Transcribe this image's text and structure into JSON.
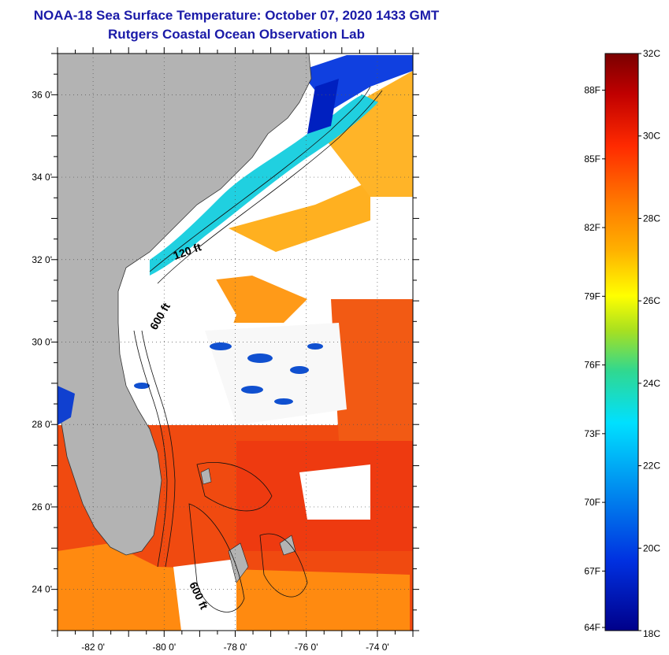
{
  "header": {
    "title": "NOAA-18 Sea Surface Temperature:  October 07, 2020 1433 GMT",
    "subtitle": "Rutgers Coastal Ocean Observation Lab"
  },
  "map": {
    "lon_range": [
      -83.0,
      -73.0
    ],
    "lat_range": [
      23.0,
      37.0
    ],
    "lon_ticks": [
      {
        "value": -82,
        "label": "-82 0'"
      },
      {
        "value": -80,
        "label": "-80 0'"
      },
      {
        "value": -78,
        "label": "-78 0'"
      },
      {
        "value": -76,
        "label": "-76 0'"
      },
      {
        "value": -74,
        "label": "-74 0'"
      }
    ],
    "lat_ticks": [
      {
        "value": 36,
        "label": "36 0'"
      },
      {
        "value": 34,
        "label": "34 0'"
      },
      {
        "value": 32,
        "label": "32 0'"
      },
      {
        "value": 30,
        "label": "30 0'"
      },
      {
        "value": 28,
        "label": "28 0'"
      },
      {
        "value": 26,
        "label": "26 0'"
      },
      {
        "value": 24,
        "label": "24 0'"
      }
    ],
    "contour_labels": [
      "120 ft",
      "600 ft",
      "600 ft"
    ]
  },
  "colorbar": {
    "celsius_labels": [
      "32C",
      "30C",
      "28C",
      "26C",
      "24C",
      "22C",
      "20C",
      "18C"
    ],
    "fahrenheit_labels": [
      "88F",
      "85F",
      "82F",
      "79F",
      "76F",
      "73F",
      "70F",
      "67F",
      "64F"
    ],
    "colors": [
      "#7a0000",
      "#c00000",
      "#ff2a00",
      "#ff7a00",
      "#ffb000",
      "#ffff00",
      "#a8e020",
      "#30d890",
      "#00e0ff",
      "#0090f0",
      "#0030e0",
      "#00008a"
    ]
  }
}
